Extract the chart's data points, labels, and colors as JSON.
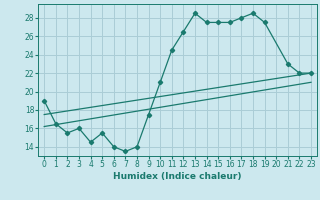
{
  "title": "",
  "xlabel": "Humidex (Indice chaleur)",
  "ylabel": "",
  "bg_color": "#cce8ee",
  "grid_color": "#aacdd6",
  "line_color": "#1a7a6e",
  "xlim": [
    -0.5,
    23.5
  ],
  "ylim": [
    13.0,
    29.5
  ],
  "yticks": [
    14,
    16,
    18,
    20,
    22,
    24,
    26,
    28
  ],
  "xticks": [
    0,
    1,
    2,
    3,
    4,
    5,
    6,
    7,
    8,
    9,
    10,
    11,
    12,
    13,
    14,
    15,
    16,
    17,
    18,
    19,
    20,
    21,
    22,
    23
  ],
  "series1_x": [
    0,
    1,
    2,
    3,
    4,
    5,
    6,
    7,
    8,
    9,
    10,
    11,
    12,
    13,
    14,
    15,
    16,
    17,
    18,
    19,
    21,
    22,
    23
  ],
  "series1_y": [
    19.0,
    16.5,
    15.5,
    16.0,
    14.5,
    15.5,
    14.0,
    13.5,
    14.0,
    17.5,
    21.0,
    24.5,
    26.5,
    28.5,
    27.5,
    27.5,
    27.5,
    28.0,
    28.5,
    27.5,
    23.0,
    22.0,
    22.0
  ],
  "series2_x": [
    0,
    23
  ],
  "series2_y": [
    17.5,
    22.0
  ],
  "series3_x": [
    0,
    23
  ],
  "series3_y": [
    16.2,
    21.0
  ]
}
